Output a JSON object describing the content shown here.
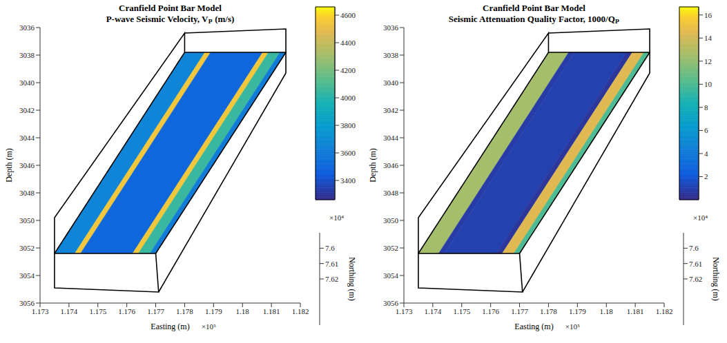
{
  "chart_data": [
    {
      "type": "surface",
      "title": "Cranfield Point Bar Model",
      "subtitle": "P-wave Seismic Velocity, Vₚ (m/s)",
      "x_label": "Easting (m)",
      "y_label": "Depth (m)",
      "y2_label": "Northing (m)",
      "xlim": [
        1.173,
        1.182
      ],
      "xticks": [
        1.173,
        1.174,
        1.175,
        1.176,
        1.177,
        1.178,
        1.179,
        1.18,
        1.181,
        1.182
      ],
      "ylim": [
        3036,
        3056
      ],
      "yticks": [
        3036,
        3038,
        3040,
        3042,
        3044,
        3046,
        3048,
        3050,
        3052,
        3054,
        3056
      ],
      "y2lim": [
        7.59,
        7.65
      ],
      "y2ticks": [
        7.6,
        7.61,
        7.62
      ],
      "annotations": [
        {
          "text": "×10⁵",
          "axis": "x"
        },
        {
          "text": "×10⁴",
          "axis": "y2"
        }
      ],
      "grid": false,
      "colorbar": {
        "lim": [
          3260,
          4660
        ],
        "ticks": [
          3400,
          3600,
          3800,
          4000,
          4200,
          4400,
          4600
        ]
      },
      "strips": [
        {
          "x_bottom": [
            1.1735,
            1.1742
          ],
          "x_top": [
            1.178,
            1.1787
          ],
          "y": [
            3052.4,
            3037.8
          ],
          "value": 3650
        },
        {
          "x_bottom": [
            1.1742,
            1.1744
          ],
          "x_top": [
            1.1787,
            1.1789
          ],
          "y": [
            3052.4,
            3037.8
          ],
          "value": 4550
        },
        {
          "x_bottom": [
            1.1744,
            1.1762
          ],
          "x_top": [
            1.1789,
            1.1807
          ],
          "y": [
            3052.4,
            3037.8
          ],
          "value": 3500
        },
        {
          "x_bottom": [
            1.1762,
            1.1764
          ],
          "x_top": [
            1.1807,
            1.1809
          ],
          "y": [
            3052.4,
            3037.8
          ],
          "value": 4550
        },
        {
          "x_bottom": [
            1.1764,
            1.1768
          ],
          "x_top": [
            1.1809,
            1.1813
          ],
          "y": [
            3052.4,
            3037.8
          ],
          "value": 4050
        },
        {
          "x_bottom": [
            1.1768,
            1.177
          ],
          "x_top": [
            1.1813,
            1.1815
          ],
          "y": [
            3052.4,
            3037.8
          ],
          "value": 3600
        }
      ],
      "outline": [
        {
          "x": [
            1.1735,
            1.177,
            1.1771,
            1.1735,
            1.1735
          ],
          "y": [
            3052.4,
            3052.4,
            3055.2,
            3054.9,
            3052.4
          ]
        },
        {
          "x": [
            1.1735,
            1.1735,
            1.178,
            1.178
          ],
          "y": [
            3052.4,
            3049.8,
            3036.4,
            3037.8
          ]
        },
        {
          "x": [
            1.1735,
            1.178,
            1.1815,
            1.177
          ],
          "y": [
            3052.4,
            3037.8,
            3037.8,
            3052.4
          ]
        },
        {
          "x": [
            1.178,
            1.1815,
            1.1815
          ],
          "y": [
            3036.4,
            3036.1,
            3039.3
          ]
        },
        {
          "x": [
            1.1771,
            1.1815
          ],
          "y": [
            3055.2,
            3039.3
          ]
        }
      ]
    },
    {
      "type": "surface",
      "title": "Cranfield Point Bar Model",
      "subtitle": "Seismic Attenuation Quality Factor, 1000/Qₚ",
      "x_label": "Easting (m)",
      "y_label": "Depth (m)",
      "y2_label": "Northing (m)",
      "xlim": [
        1.173,
        1.182
      ],
      "xticks": [
        1.173,
        1.174,
        1.175,
        1.176,
        1.177,
        1.178,
        1.179,
        1.18,
        1.181,
        1.182
      ],
      "ylim": [
        3036,
        3056
      ],
      "yticks": [
        3036,
        3038,
        3040,
        3042,
        3044,
        3046,
        3048,
        3050,
        3052,
        3054,
        3056
      ],
      "y2lim": [
        7.59,
        7.65
      ],
      "y2ticks": [
        7.6,
        7.61,
        7.62
      ],
      "annotations": [
        {
          "text": "×10⁵",
          "axis": "x"
        },
        {
          "text": "×10⁴",
          "axis": "y2"
        }
      ],
      "grid": false,
      "colorbar": {
        "lim": [
          0,
          16.7
        ],
        "ticks": [
          2,
          4,
          6,
          8,
          10,
          12,
          14,
          16
        ]
      },
      "strips": [
        {
          "x_bottom": [
            1.1735,
            1.1742
          ],
          "x_top": [
            1.178,
            1.1787
          ],
          "y": [
            3052.4,
            3037.8
          ],
          "value": 12.5
        },
        {
          "x_bottom": [
            1.1742,
            1.1744
          ],
          "x_top": [
            1.1787,
            1.1789
          ],
          "y": [
            3052.4,
            3037.8
          ],
          "value": 0.8
        },
        {
          "x_bottom": [
            1.1744,
            1.1762
          ],
          "x_top": [
            1.1789,
            1.1807
          ],
          "y": [
            3052.4,
            3037.8
          ],
          "value": 1
        },
        {
          "x_bottom": [
            1.1762,
            1.1764
          ],
          "x_top": [
            1.1807,
            1.1809
          ],
          "y": [
            3052.4,
            3037.8
          ],
          "value": 0.5
        },
        {
          "x_bottom": [
            1.1764,
            1.1768
          ],
          "x_top": [
            1.1809,
            1.1813
          ],
          "y": [
            3052.4,
            3037.8
          ],
          "value": 14.5
        },
        {
          "x_bottom": [
            1.1768,
            1.177
          ],
          "x_top": [
            1.1813,
            1.1815
          ],
          "y": [
            3052.4,
            3037.8
          ],
          "value": 10
        }
      ],
      "outline": [
        {
          "x": [
            1.1735,
            1.177,
            1.1771,
            1.1735,
            1.1735
          ],
          "y": [
            3052.4,
            3052.4,
            3055.2,
            3054.9,
            3052.4
          ]
        },
        {
          "x": [
            1.1735,
            1.1735,
            1.178,
            1.178
          ],
          "y": [
            3052.4,
            3049.8,
            3036.4,
            3037.8
          ]
        },
        {
          "x": [
            1.1735,
            1.178,
            1.1815,
            1.177
          ],
          "y": [
            3052.4,
            3037.8,
            3037.8,
            3052.4
          ]
        },
        {
          "x": [
            1.178,
            1.1815,
            1.1815
          ],
          "y": [
            3036.4,
            3036.1,
            3039.3
          ]
        },
        {
          "x": [
            1.1771,
            1.1815
          ],
          "y": [
            3055.2,
            3039.3
          ]
        }
      ]
    }
  ]
}
